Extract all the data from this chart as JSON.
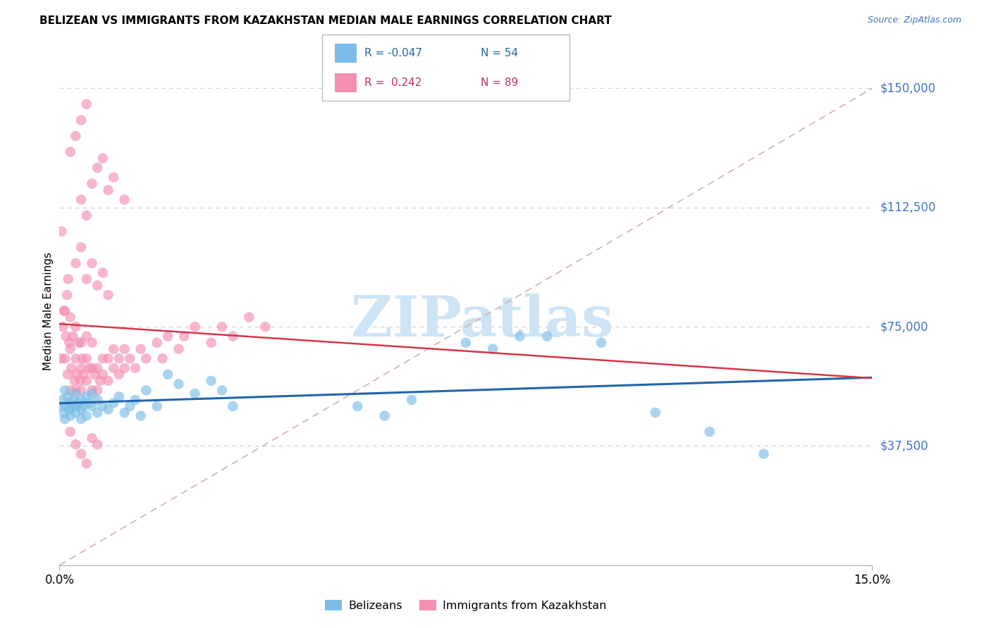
{
  "title": "BELIZEAN VS IMMIGRANTS FROM KAZAKHSTAN MEDIAN MALE EARNINGS CORRELATION CHART",
  "source": "Source: ZipAtlas.com",
  "ylabel_label": "Median Male Earnings",
  "xlim": [
    0.0,
    0.15
  ],
  "ylim": [
    0,
    160000
  ],
  "background_color": "#ffffff",
  "grid_color": "#cccccc",
  "color_blue": "#7bbde8",
  "color_pink": "#f48fb1",
  "trendline_blue_color": "#2166ac",
  "trendline_pink_color": "#d6354a",
  "trendline_dashed_color": "#d3b0b0",
  "ytick_vals": [
    0,
    37500,
    75000,
    112500,
    150000
  ],
  "ytick_labels": [
    "",
    "$37,500",
    "$75,000",
    "$112,500",
    "$150,000"
  ],
  "belizean_x": [
    0.0004,
    0.0006,
    0.0008,
    0.001,
    0.001,
    0.0012,
    0.0015,
    0.0018,
    0.002,
    0.002,
    0.0022,
    0.0025,
    0.003,
    0.003,
    0.003,
    0.0035,
    0.004,
    0.004,
    0.004,
    0.0045,
    0.005,
    0.005,
    0.0055,
    0.006,
    0.006,
    0.007,
    0.007,
    0.008,
    0.009,
    0.01,
    0.011,
    0.012,
    0.013,
    0.014,
    0.015,
    0.016,
    0.018,
    0.02,
    0.022,
    0.025,
    0.028,
    0.03,
    0.032,
    0.055,
    0.06,
    0.065,
    0.075,
    0.08,
    0.085,
    0.09,
    0.1,
    0.11,
    0.12,
    0.13
  ],
  "belizean_y": [
    50000,
    52000,
    48000,
    55000,
    46000,
    50000,
    53000,
    49000,
    51000,
    47000,
    50000,
    52000,
    48000,
    50000,
    54000,
    51000,
    49000,
    52000,
    46000,
    50000,
    53000,
    47000,
    51000,
    50000,
    54000,
    48000,
    52000,
    50000,
    49000,
    51000,
    53000,
    48000,
    50000,
    52000,
    47000,
    55000,
    50000,
    60000,
    57000,
    54000,
    58000,
    55000,
    50000,
    50000,
    47000,
    52000,
    70000,
    68000,
    72000,
    72000,
    70000,
    48000,
    42000,
    35000
  ],
  "kazakhstan_x": [
    0.0003,
    0.0004,
    0.0006,
    0.0008,
    0.001,
    0.001,
    0.0012,
    0.0014,
    0.0015,
    0.0016,
    0.0018,
    0.002,
    0.002,
    0.002,
    0.0022,
    0.0025,
    0.0028,
    0.003,
    0.003,
    0.003,
    0.0032,
    0.0035,
    0.0038,
    0.004,
    0.004,
    0.004,
    0.0042,
    0.0045,
    0.005,
    0.005,
    0.005,
    0.0055,
    0.006,
    0.006,
    0.006,
    0.0065,
    0.007,
    0.007,
    0.0075,
    0.008,
    0.008,
    0.009,
    0.009,
    0.01,
    0.01,
    0.011,
    0.011,
    0.012,
    0.012,
    0.013,
    0.014,
    0.015,
    0.016,
    0.018,
    0.019,
    0.02,
    0.022,
    0.023,
    0.025,
    0.028,
    0.03,
    0.032,
    0.035,
    0.038,
    0.004,
    0.005,
    0.006,
    0.007,
    0.008,
    0.009,
    0.01,
    0.012,
    0.002,
    0.003,
    0.004,
    0.005,
    0.003,
    0.004,
    0.005,
    0.006,
    0.007,
    0.008,
    0.009,
    0.002,
    0.003,
    0.004,
    0.005,
    0.006,
    0.007
  ],
  "kazakhstan_y": [
    65000,
    105000,
    75000,
    80000,
    65000,
    80000,
    72000,
    85000,
    60000,
    90000,
    70000,
    55000,
    68000,
    78000,
    62000,
    72000,
    58000,
    55000,
    65000,
    75000,
    60000,
    70000,
    58000,
    55000,
    62000,
    70000,
    65000,
    60000,
    58000,
    65000,
    72000,
    62000,
    55000,
    62000,
    70000,
    60000,
    55000,
    62000,
    58000,
    60000,
    65000,
    58000,
    65000,
    62000,
    68000,
    60000,
    65000,
    62000,
    68000,
    65000,
    62000,
    68000,
    65000,
    70000,
    65000,
    72000,
    68000,
    72000,
    75000,
    70000,
    75000,
    72000,
    78000,
    75000,
    115000,
    110000,
    120000,
    125000,
    128000,
    118000,
    122000,
    115000,
    130000,
    135000,
    140000,
    145000,
    95000,
    100000,
    90000,
    95000,
    88000,
    92000,
    85000,
    42000,
    38000,
    35000,
    32000,
    40000,
    38000
  ]
}
